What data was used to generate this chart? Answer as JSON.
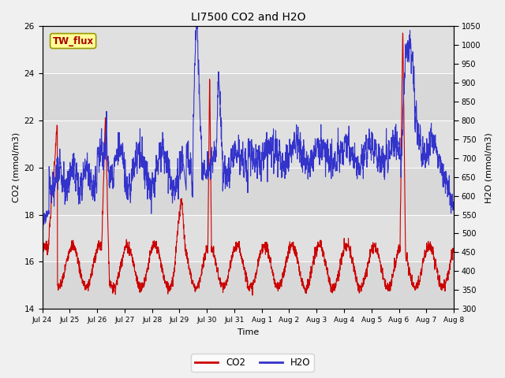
{
  "title": "LI7500 CO2 and H2O",
  "xlabel": "Time",
  "ylabel_left": "CO2 (mmol/m3)",
  "ylabel_right": "H2O (mmol/m3)",
  "co2_ylim": [
    14,
    26
  ],
  "h2o_ylim": [
    300,
    1050
  ],
  "co2_yticks": [
    14,
    16,
    18,
    20,
    22,
    24,
    26
  ],
  "h2o_yticks": [
    300,
    350,
    400,
    450,
    500,
    550,
    600,
    650,
    700,
    750,
    800,
    850,
    900,
    950,
    1000,
    1050
  ],
  "bg_color": "#f0f0f0",
  "plot_bg_light": "#e8e8e8",
  "plot_bg_dark": "#d8d8d8",
  "co2_color": "#cc0000",
  "h2o_color": "#3333cc",
  "annotation_text": "TW_flux",
  "annotation_color": "#aa0000",
  "annotation_bg": "#ffff99",
  "annotation_border": "#999900",
  "xtick_labels": [
    "Jul 24",
    "Jul 25",
    "Jul 26",
    "Jul 27",
    "Jul 28",
    "Jul 29",
    "Jul 30",
    "Jul 31",
    "Aug 1",
    "Aug 2",
    "Aug 3",
    "Aug 4",
    "Aug 5",
    "Aug 6",
    "Aug 7",
    "Aug 8"
  ],
  "n_points": 2160,
  "num_days": 15
}
